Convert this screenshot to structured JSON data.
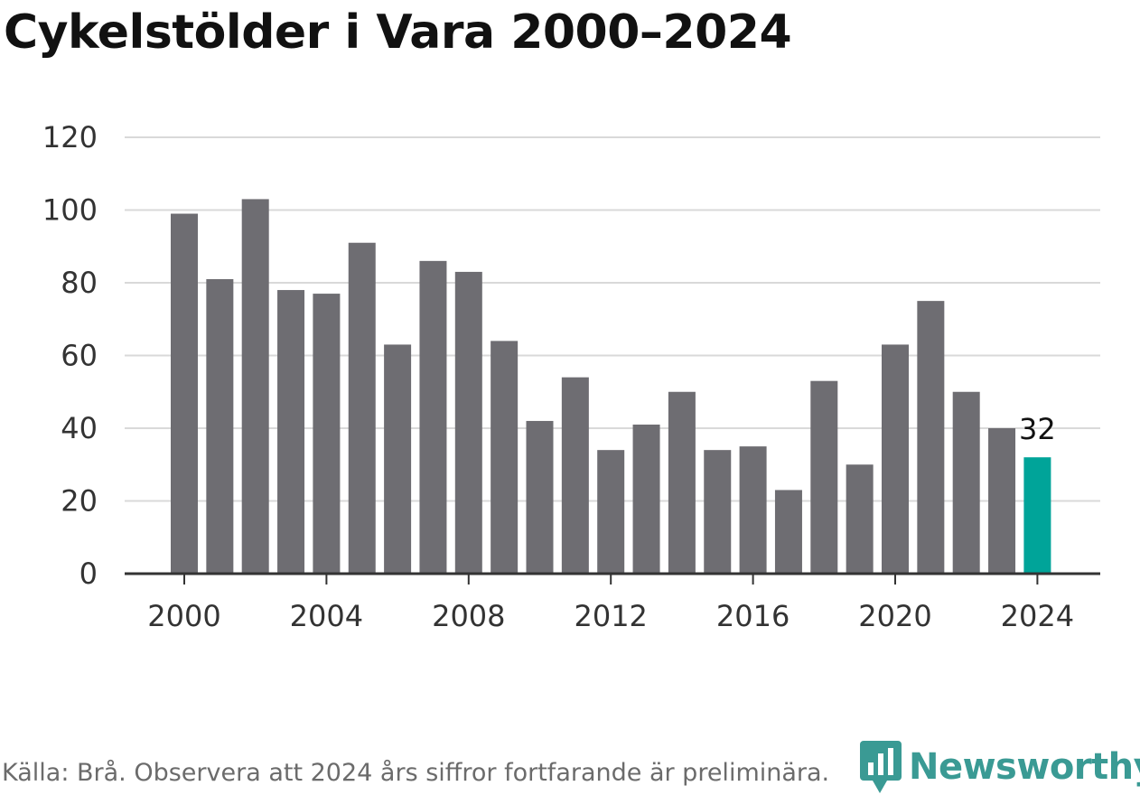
{
  "header": {
    "title": "Cykelstölder i Vara 2000–2024"
  },
  "footer": {
    "source": "Källa: Brå. Observera att 2024 års siffror fortfarande är preliminära.",
    "brand": "Newsworthy"
  },
  "colors": {
    "bar": "#6e6d72",
    "highlight": "#00a499",
    "grid": "#d9d9d9",
    "axis": "#333333",
    "brand": "#3a9a94"
  },
  "chart_data": {
    "type": "bar",
    "title": "Cykelstölder i Vara 2000–2024",
    "xlabel": "",
    "ylabel": "",
    "categories": [
      2000,
      2001,
      2002,
      2003,
      2004,
      2005,
      2006,
      2007,
      2008,
      2009,
      2010,
      2011,
      2012,
      2013,
      2014,
      2015,
      2016,
      2017,
      2018,
      2019,
      2020,
      2021,
      2022,
      2023,
      2024
    ],
    "values": [
      99,
      81,
      103,
      78,
      77,
      91,
      63,
      86,
      83,
      64,
      42,
      54,
      34,
      41,
      50,
      34,
      35,
      23,
      53,
      30,
      63,
      75,
      50,
      40,
      32
    ],
    "highlight_index": 24,
    "data_labels": [
      {
        "index": 24,
        "text": "32"
      }
    ],
    "ylim": [
      0,
      120
    ],
    "yticks": [
      0,
      20,
      40,
      60,
      80,
      100,
      120
    ],
    "xticks": [
      2000,
      2004,
      2008,
      2012,
      2016,
      2020,
      2024
    ],
    "grid": true
  }
}
